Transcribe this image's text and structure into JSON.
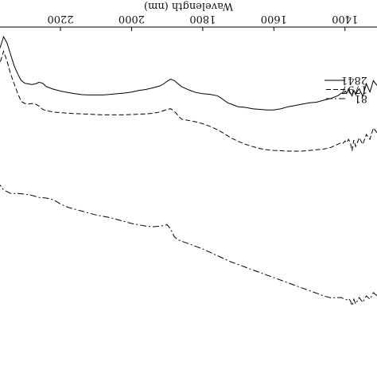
{
  "chart_data": {
    "type": "line",
    "orientation": "rotated-180",
    "xlabel": "Wavelength (nm)",
    "xlim": [
      1310,
      2370
    ],
    "x_ticks": [
      1400,
      1600,
      1800,
      2000,
      2200
    ],
    "x_tick_labels": [
      "1400",
      "1600",
      "1800",
      "2000",
      "2200"
    ],
    "ylim": [
      0,
      1
    ],
    "y_axis_labeled": false,
    "grid": false,
    "legend_placement": "top-right",
    "series": [
      {
        "name": "2841",
        "dash": "solid",
        "x": [
          1310,
          1320,
          1330,
          1340,
          1350,
          1360,
          1365,
          1370,
          1375,
          1380,
          1385,
          1390,
          1395,
          1400,
          1405,
          1410,
          1420,
          1440,
          1460,
          1480,
          1500,
          1520,
          1540,
          1560,
          1580,
          1600,
          1620,
          1640,
          1660,
          1680,
          1700,
          1710,
          1720,
          1730,
          1740,
          1750,
          1760,
          1780,
          1800,
          1820,
          1840,
          1860,
          1880,
          1890,
          1900,
          1910,
          1920,
          1940,
          1960,
          1980,
          2000,
          2020,
          2040,
          2060,
          2080,
          2100,
          2120,
          2140,
          2160,
          2180,
          2200,
          2220,
          2240,
          2250,
          2260,
          2270,
          2280,
          2290,
          2300,
          2310,
          2320,
          2330,
          2340,
          2350,
          2360,
          2370
        ],
        "y": [
          0.155,
          0.14,
          0.175,
          0.15,
          0.188,
          0.165,
          0.172,
          0.183,
          0.17,
          0.187,
          0.178,
          0.165,
          0.178,
          0.172,
          0.18,
          0.178,
          0.186,
          0.195,
          0.2,
          0.206,
          0.208,
          0.212,
          0.216,
          0.22,
          0.226,
          0.23,
          0.23,
          0.228,
          0.226,
          0.222,
          0.22,
          0.216,
          0.212,
          0.208,
          0.2,
          0.192,
          0.186,
          0.182,
          0.18,
          0.176,
          0.168,
          0.158,
          0.14,
          0.135,
          0.142,
          0.15,
          0.156,
          0.162,
          0.167,
          0.17,
          0.175,
          0.178,
          0.18,
          0.182,
          0.184,
          0.184,
          0.184,
          0.183,
          0.18,
          0.176,
          0.172,
          0.166,
          0.158,
          0.148,
          0.145,
          0.15,
          0.152,
          0.15,
          0.148,
          0.14,
          0.12,
          0.095,
          0.06,
          0.025,
          0.005,
          0.04
        ]
      },
      {
        "name": "1797",
        "dash": "dashed",
        "x": [
          1310,
          1320,
          1330,
          1340,
          1350,
          1360,
          1365,
          1370,
          1375,
          1380,
          1385,
          1390,
          1395,
          1400,
          1405,
          1410,
          1420,
          1440,
          1460,
          1480,
          1500,
          1520,
          1540,
          1560,
          1580,
          1600,
          1620,
          1640,
          1660,
          1680,
          1700,
          1720,
          1740,
          1760,
          1780,
          1800,
          1820,
          1840,
          1860,
          1880,
          1890,
          1900,
          1910,
          1920,
          1940,
          1960,
          1980,
          2000,
          2020,
          2040,
          2060,
          2080,
          2100,
          2120,
          2140,
          2160,
          2180,
          2200,
          2220,
          2240,
          2250,
          2260,
          2270,
          2280,
          2290,
          2300,
          2310,
          2320,
          2330,
          2340,
          2350,
          2360,
          2370
        ],
        "y": [
          0.3,
          0.285,
          0.32,
          0.305,
          0.335,
          0.315,
          0.33,
          0.342,
          0.322,
          0.355,
          0.33,
          0.32,
          0.33,
          0.325,
          0.332,
          0.33,
          0.335,
          0.345,
          0.35,
          0.352,
          0.354,
          0.356,
          0.356,
          0.356,
          0.355,
          0.354,
          0.352,
          0.348,
          0.342,
          0.335,
          0.326,
          0.316,
          0.302,
          0.29,
          0.28,
          0.272,
          0.266,
          0.262,
          0.258,
          0.234,
          0.226,
          0.228,
          0.232,
          0.236,
          0.24,
          0.242,
          0.243,
          0.244,
          0.245,
          0.245,
          0.245,
          0.245,
          0.244,
          0.243,
          0.242,
          0.241,
          0.24,
          0.238,
          0.236,
          0.232,
          0.228,
          0.218,
          0.212,
          0.21,
          0.212,
          0.21,
          0.204,
          0.18,
          0.15,
          0.12,
          0.08,
          0.05,
          0.085
        ]
      },
      {
        "name": "81",
        "dash": "dash-dot",
        "x": [
          1310,
          1320,
          1330,
          1340,
          1350,
          1360,
          1365,
          1370,
          1375,
          1380,
          1385,
          1390,
          1395,
          1400,
          1405,
          1410,
          1420,
          1440,
          1460,
          1480,
          1500,
          1520,
          1540,
          1560,
          1580,
          1600,
          1620,
          1640,
          1660,
          1680,
          1700,
          1720,
          1740,
          1760,
          1780,
          1800,
          1820,
          1840,
          1860,
          1870,
          1880,
          1890,
          1900,
          1920,
          1940,
          1960,
          1980,
          2000,
          2020,
          2040,
          2060,
          2080,
          2100,
          2120,
          2140,
          2160,
          2180,
          2200,
          2220,
          2240,
          2260,
          2280,
          2300,
          2320,
          2340,
          2360,
          2370
        ],
        "y": [
          0.8,
          0.79,
          0.81,
          0.8,
          0.82,
          0.805,
          0.815,
          0.825,
          0.81,
          0.83,
          0.815,
          0.808,
          0.812,
          0.81,
          0.808,
          0.805,
          0.805,
          0.806,
          0.8,
          0.792,
          0.784,
          0.776,
          0.768,
          0.76,
          0.752,
          0.744,
          0.736,
          0.728,
          0.72,
          0.712,
          0.704,
          0.696,
          0.686,
          0.676,
          0.666,
          0.656,
          0.648,
          0.64,
          0.632,
          0.628,
          0.618,
          0.595,
          0.582,
          0.586,
          0.588,
          0.586,
          0.582,
          0.578,
          0.572,
          0.566,
          0.56,
          0.556,
          0.552,
          0.546,
          0.54,
          0.534,
          0.528,
          0.518,
          0.505,
          0.5,
          0.498,
          0.492,
          0.488,
          0.486,
          0.486,
          0.475,
          0.46
        ]
      }
    ],
    "legend_sample_dashes": [
      "solid",
      "dashed",
      "dash-dot"
    ]
  }
}
